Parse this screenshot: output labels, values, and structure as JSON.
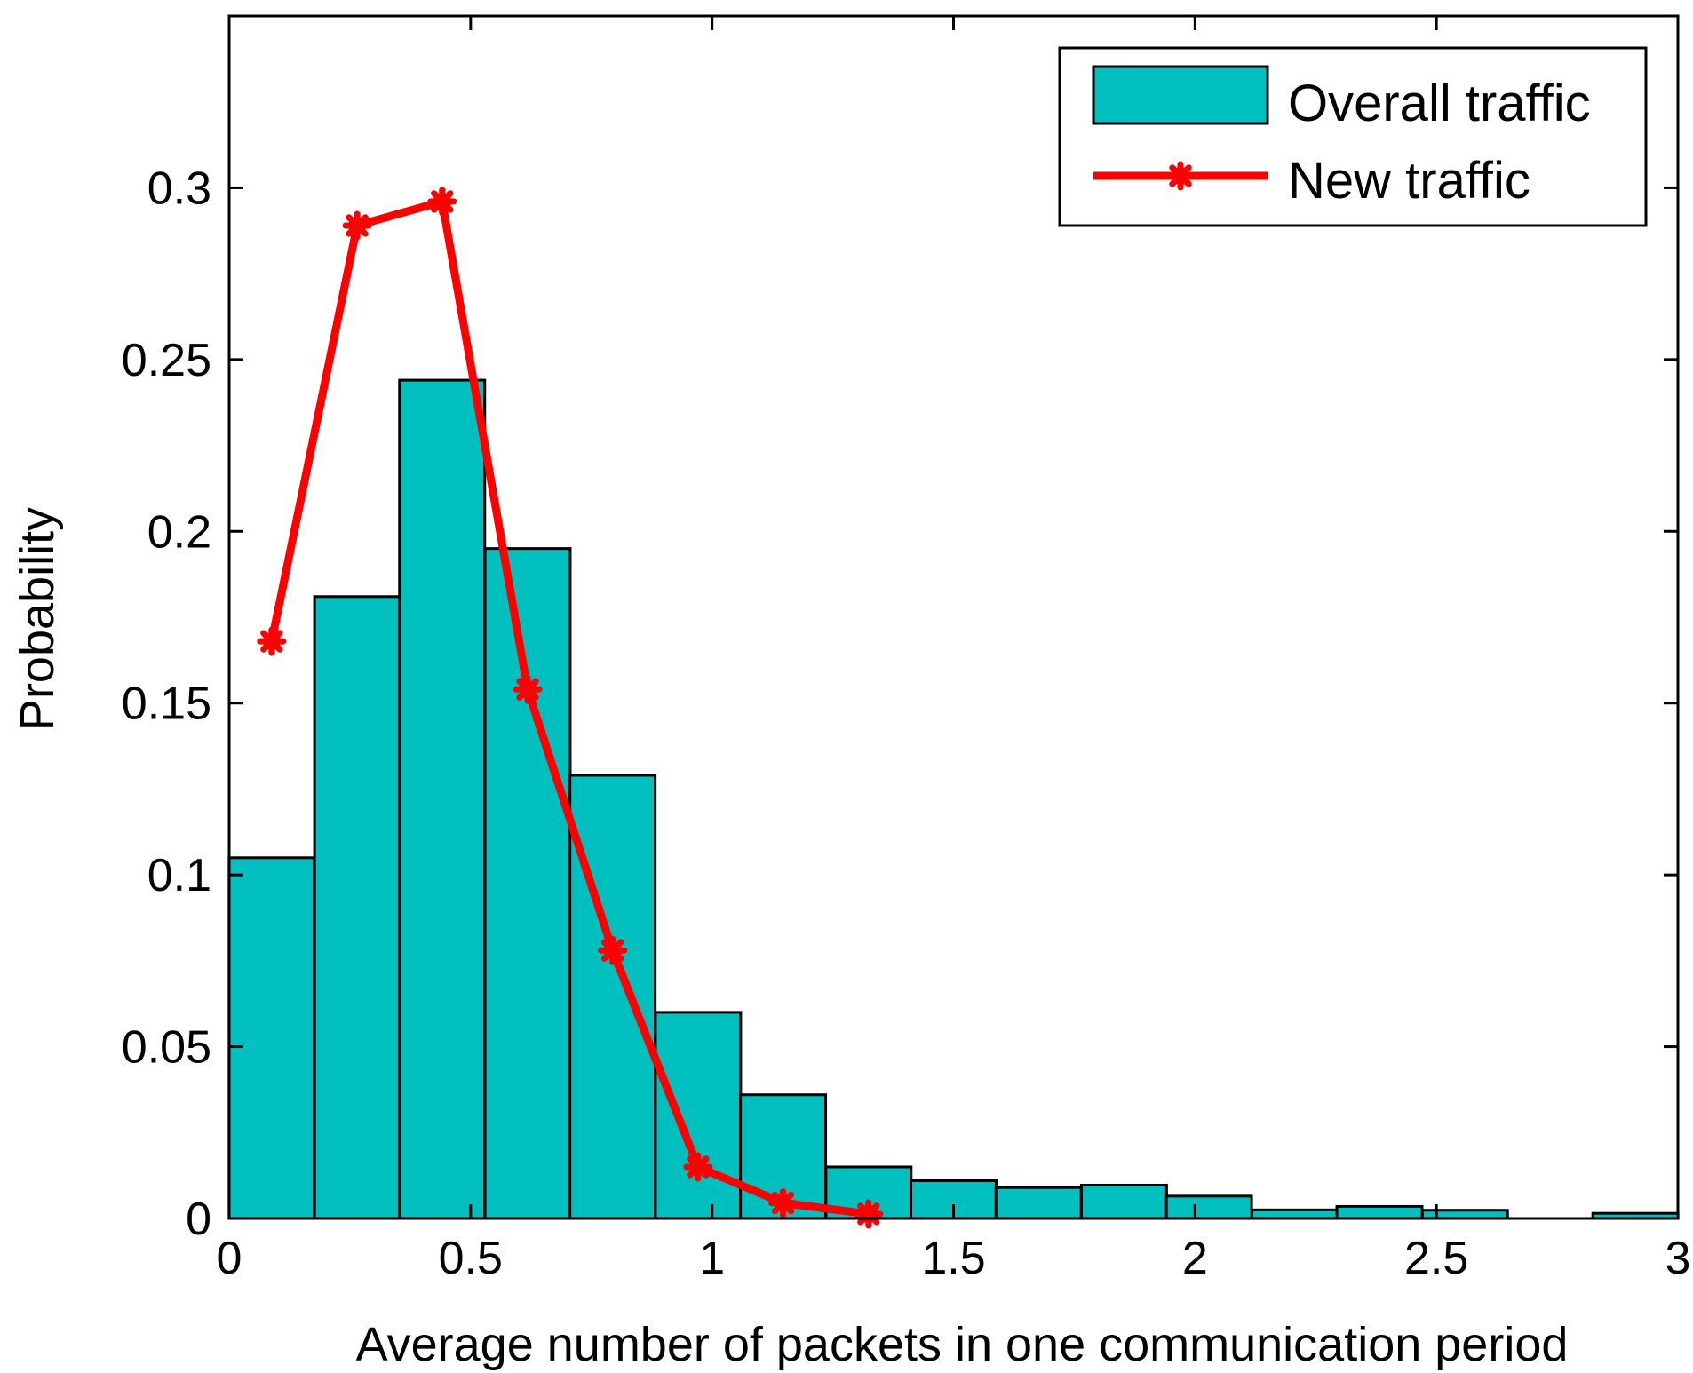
{
  "chart_data": {
    "type": "bar",
    "title": "",
    "xlabel": "Average number of packets in one communication period",
    "ylabel": "Probability",
    "xlim": [
      0,
      3
    ],
    "ylim": [
      0,
      0.35
    ],
    "xticks": [
      0,
      0.5,
      1,
      1.5,
      2,
      2.5,
      3
    ],
    "xtick_labels": [
      "0",
      "0.5",
      "1",
      "1.5",
      "2",
      "2.5",
      "3"
    ],
    "yticks": [
      0,
      0.05,
      0.1,
      0.15,
      0.2,
      0.25,
      0.3
    ],
    "ytick_labels": [
      "0",
      "0.05",
      "0.1",
      "0.15",
      "0.2",
      "0.25",
      "0.3"
    ],
    "grid": false,
    "legend_position": "top-right",
    "series": [
      {
        "name": "Overall traffic",
        "kind": "histogram",
        "color": "#00BFBF",
        "bin_width": 0.1765,
        "bin_centers": [
          0.088,
          0.265,
          0.441,
          0.618,
          0.794,
          0.971,
          1.147,
          1.324,
          1.5,
          1.676,
          1.853,
          2.029,
          2.206,
          2.382,
          2.559,
          2.735,
          2.912
        ],
        "values": [
          0.105,
          0.181,
          0.244,
          0.195,
          0.129,
          0.06,
          0.036,
          0.015,
          0.011,
          0.009,
          0.0097,
          0.0065,
          0.0025,
          0.0035,
          0.0024,
          0.0,
          0.0015
        ]
      },
      {
        "name": "New traffic",
        "kind": "line",
        "color": "#FF0000",
        "marker": "star",
        "x": [
          0.088,
          0.265,
          0.441,
          0.618,
          0.794,
          0.971,
          1.147,
          1.324
        ],
        "values": [
          0.168,
          0.289,
          0.296,
          0.154,
          0.078,
          0.015,
          0.0045,
          0.0013
        ]
      }
    ]
  }
}
